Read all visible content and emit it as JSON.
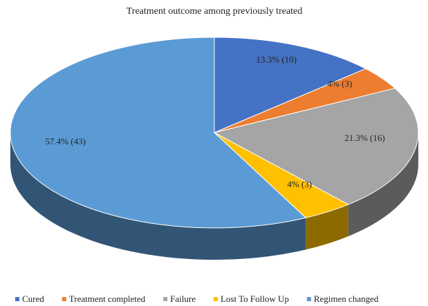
{
  "chart_data": {
    "type": "pie",
    "title": "Treatment outcome among previously treated",
    "categories": [
      "Cured",
      "Treatment completed",
      "Failure",
      "Lost To Follow Up",
      "Regimen changed"
    ],
    "values": [
      13.3,
      4,
      21.3,
      4,
      57.4
    ],
    "value_labels": [
      "13.3% (10)",
      "4% (3)",
      "21.3% (16)",
      "4% (3)",
      "57.4% (43)"
    ],
    "colors": [
      "#4472c4",
      "#ed7d31",
      "#a5a5a5",
      "#ffc000",
      "#5b9bd5"
    ],
    "legend": "bottom"
  }
}
